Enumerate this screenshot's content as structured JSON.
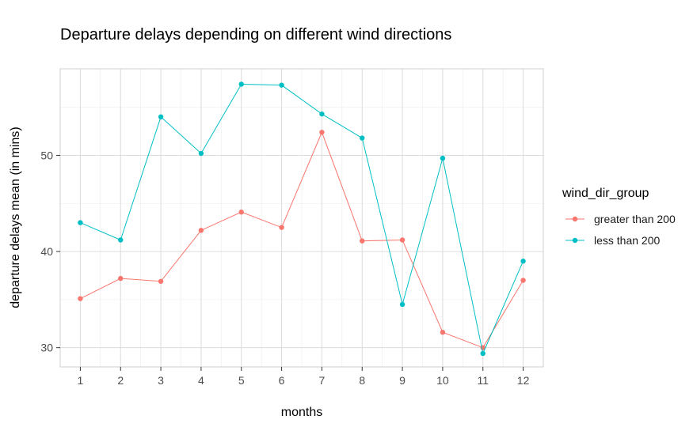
{
  "chart_data": {
    "type": "line",
    "title": "Departure delays depending on different wind directions",
    "xlabel": "months",
    "ylabel": "departure delays mean (in mins)",
    "x": [
      1,
      2,
      3,
      4,
      5,
      6,
      7,
      8,
      9,
      10,
      11,
      12
    ],
    "xlim": [
      0.5,
      12.5
    ],
    "ylim": [
      28,
      59
    ],
    "y_ticks": [
      30,
      40,
      50
    ],
    "grid": true,
    "legend": {
      "title": "wind_dir_group",
      "position": "right"
    },
    "series": [
      {
        "name": "greater than 200",
        "color": "#F8766D",
        "values": [
          35.1,
          37.2,
          36.9,
          42.2,
          44.1,
          42.5,
          52.4,
          41.1,
          41.2,
          31.6,
          30.0,
          37.0
        ]
      },
      {
        "name": "less than 200",
        "color": "#00BFC4",
        "values": [
          43.0,
          41.2,
          54.0,
          50.2,
          57.4,
          57.3,
          54.3,
          51.8,
          34.5,
          49.7,
          29.4,
          39.0
        ]
      }
    ]
  }
}
